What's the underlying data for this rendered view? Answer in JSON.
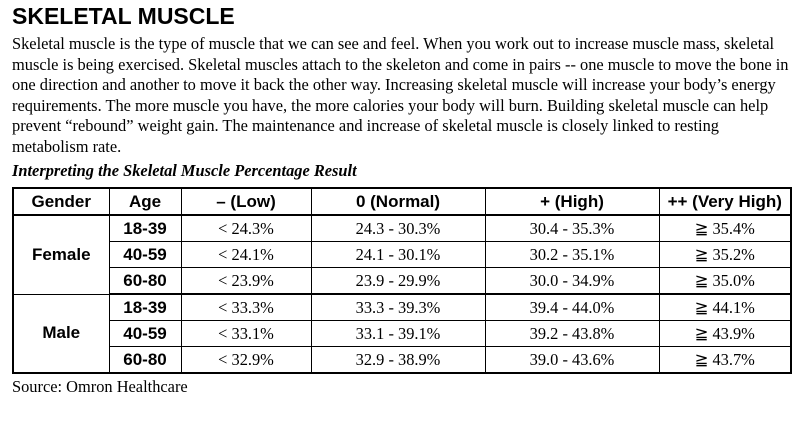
{
  "title": "SKELETAL MUSCLE",
  "intro": "Skeletal muscle is the type of muscle that we can see and feel. When you work out to increase muscle mass, skeletal muscle is being exercised. Skeletal muscles attach to the skeleton and come in pairs -- one muscle to move the bone in one direction and another to move it back the other way. Increasing skeletal muscle will increase your body’s energy requirements. The more muscle you have, the more calories your body will burn. Building skeletal muscle can help prevent “rebound” weight gain. The maintenance and increase of skeletal muscle is closely linked to resting metabolism rate.",
  "subtitle": "Interpreting the Skeletal Muscle Percentage Result",
  "table": {
    "headers": [
      "Gender",
      "Age",
      "– (Low)",
      "0 (Normal)",
      "+ (High)",
      "++ (Very High)"
    ],
    "groups": [
      {
        "gender": "Female",
        "rows": [
          {
            "age": "18-39",
            "low": "< 24.3%",
            "normal": "24.3 - 30.3%",
            "high": "30.4 - 35.3%",
            "very_high": "≧ 35.4%"
          },
          {
            "age": "40-59",
            "low": "< 24.1%",
            "normal": "24.1 - 30.1%",
            "high": "30.2 - 35.1%",
            "very_high": "≧ 35.2%"
          },
          {
            "age": "60-80",
            "low": "< 23.9%",
            "normal": "23.9 - 29.9%",
            "high": "30.0 - 34.9%",
            "very_high": "≧ 35.0%"
          }
        ]
      },
      {
        "gender": "Male",
        "rows": [
          {
            "age": "18-39",
            "low": "< 33.3%",
            "normal": "33.3 - 39.3%",
            "high": "39.4 - 44.0%",
            "very_high": "≧ 44.1%"
          },
          {
            "age": "40-59",
            "low": "< 33.1%",
            "normal": "33.1 - 39.1%",
            "high": "39.2 - 43.8%",
            "very_high": "≧ 43.9%"
          },
          {
            "age": "60-80",
            "low": "< 32.9%",
            "normal": "32.9 - 38.9%",
            "high": "39.0 - 43.6%",
            "very_high": "≧ 43.7%"
          }
        ]
      }
    ]
  },
  "source": "Source: Omron Healthcare"
}
